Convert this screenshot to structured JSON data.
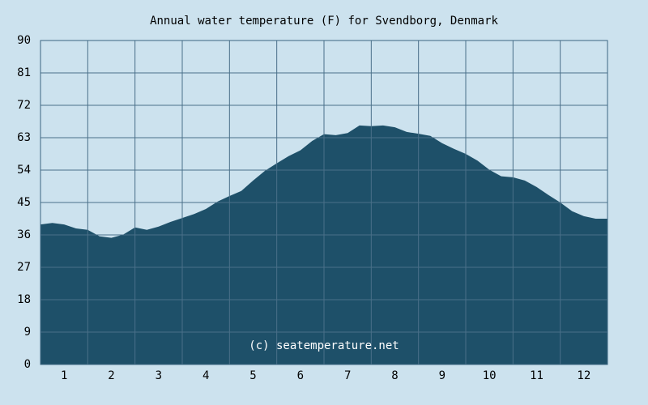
{
  "chart_data": {
    "type": "area",
    "title": "Annual water temperature (F) for Svendborg, Denmark",
    "xlabel": "",
    "ylabel": "",
    "ylim": [
      0,
      90
    ],
    "yticks": [
      "0",
      "9",
      "18",
      "27",
      "36",
      "45",
      "54",
      "63",
      "72",
      "81",
      "90"
    ],
    "xlim": [
      0.5,
      12.5
    ],
    "xticks": [
      "1",
      "2",
      "3",
      "4",
      "5",
      "6",
      "7",
      "8",
      "9",
      "10",
      "11",
      "12"
    ],
    "grid": true,
    "series": [
      {
        "x": [
          0.5,
          0.75,
          1.0,
          1.25,
          1.5,
          1.75,
          2.0,
          2.25,
          2.5,
          2.75,
          3.0,
          3.25,
          3.5,
          3.75,
          4.0,
          4.25,
          4.5,
          4.75,
          5.0,
          5.25,
          5.5,
          5.75,
          6.0,
          6.25,
          6.5,
          6.75,
          7.0,
          7.25,
          7.5,
          7.75,
          8.0,
          8.25,
          8.5,
          8.75,
          9.0,
          9.25,
          9.5,
          9.75,
          10.0,
          10.25,
          10.5,
          10.75,
          11.0,
          11.25,
          11.5,
          11.75,
          12.0,
          12.25,
          12.5
        ],
        "values": [
          38.9,
          39.3,
          38.9,
          37.8,
          37.4,
          35.6,
          35.2,
          36.1,
          38.1,
          37.4,
          38.3,
          39.6,
          40.7,
          41.8,
          43.2,
          45.3,
          46.8,
          48.2,
          51.1,
          53.8,
          55.9,
          57.9,
          59.5,
          62.1,
          64.0,
          63.7,
          64.3,
          66.4,
          66.2,
          66.4,
          65.9,
          64.6,
          64.1,
          63.5,
          61.5,
          59.9,
          58.5,
          56.6,
          54.1,
          52.3,
          52.0,
          51.1,
          49.3,
          47.1,
          45.0,
          42.6,
          41.2,
          40.5,
          40.5
        ]
      }
    ],
    "colors": {
      "background": "#cce2ee",
      "plot_background": "#cce2ee",
      "area_fill": "#1e5069",
      "grid": "#3d6783",
      "area_grid": "#4a7089"
    },
    "watermark": "(c) seatemperature.net"
  }
}
